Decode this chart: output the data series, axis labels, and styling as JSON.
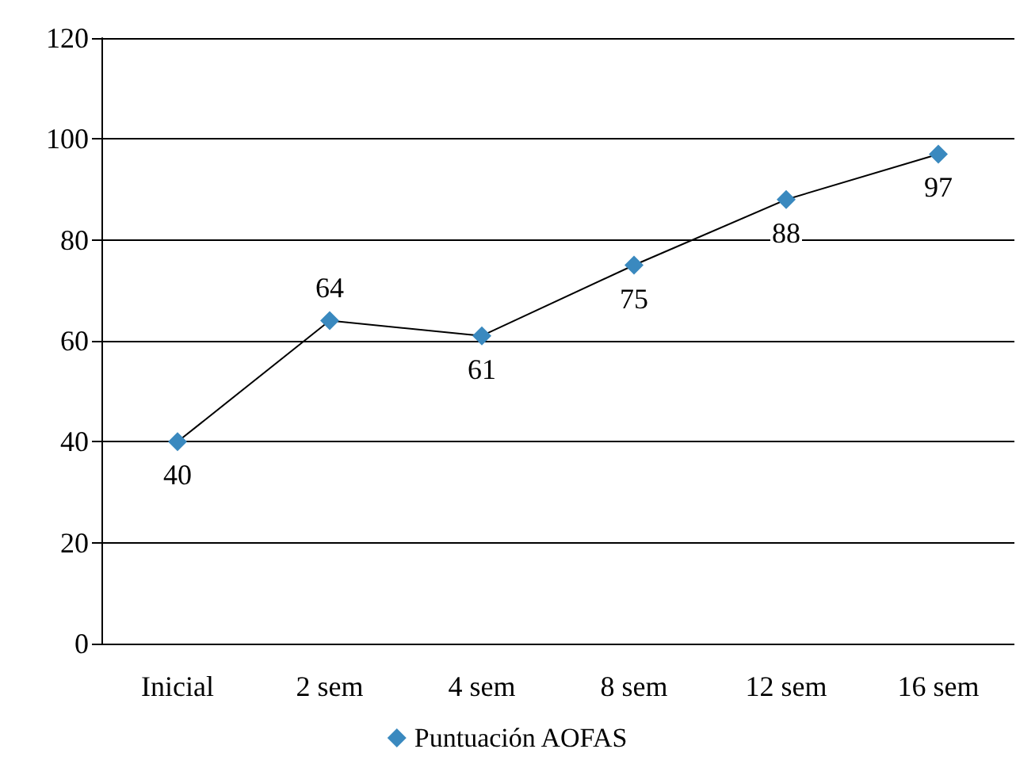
{
  "chart_data": {
    "type": "line",
    "categories": [
      "Inicial",
      "2 sem",
      "4 sem",
      "8 sem",
      "12 sem",
      "16 sem"
    ],
    "series": [
      {
        "name": "Puntuación AOFAS",
        "color": "#3a89bf",
        "values": [
          40,
          64,
          61,
          75,
          88,
          97
        ]
      }
    ],
    "ylim": [
      0,
      120
    ],
    "yticks": [
      0,
      20,
      40,
      60,
      80,
      100,
      120
    ],
    "grid": "y",
    "legend": "bottom",
    "marker": "diamond",
    "data_labels": true
  }
}
